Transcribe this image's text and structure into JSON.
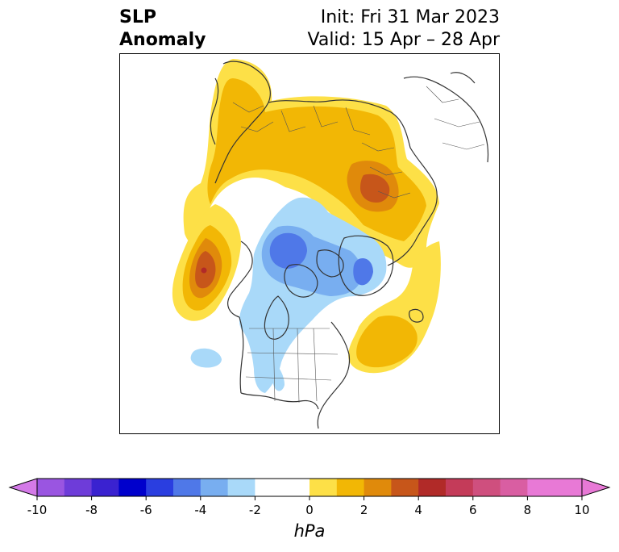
{
  "title": {
    "left_line1": "SLP",
    "left_line2": "Anomaly",
    "right_line1": "Init: Fri 31 Mar 2023",
    "right_line2": "Valid: 15 Apr – 28 Apr"
  },
  "colorbar": {
    "units": "hPa",
    "min": -10,
    "max": 10,
    "step": 1,
    "tick_labels": [
      "-10",
      "-8",
      "-6",
      "-4",
      "-2",
      "0",
      "2",
      "4",
      "6",
      "8",
      "10"
    ],
    "colors": [
      "#9a55e1",
      "#6e3cd9",
      "#3a22d0",
      "#0000cc",
      "#2a3ee0",
      "#4f78e8",
      "#78aef0",
      "#a9d9f9",
      "#ffffff",
      "#ffffff",
      "#fde047",
      "#f2b705",
      "#e08a0b",
      "#c7561a",
      "#b12a28",
      "#c43b59",
      "#cf4f7e",
      "#d95ea2",
      "#e879d6",
      "#e879d6"
    ],
    "extend_low_color": "#d47ae8",
    "extend_high_color": "#e879d6"
  },
  "map": {
    "projection": "north-polar-stereographic",
    "anomaly_colors": {
      "pos1": "#fde047",
      "pos2": "#f2b705",
      "pos3": "#e08a0b",
      "pos4": "#c7561a",
      "pos5": "#b12a28",
      "neg1": "#a9d9f9",
      "neg2": "#78aef0",
      "neg3": "#4f78e8"
    }
  }
}
